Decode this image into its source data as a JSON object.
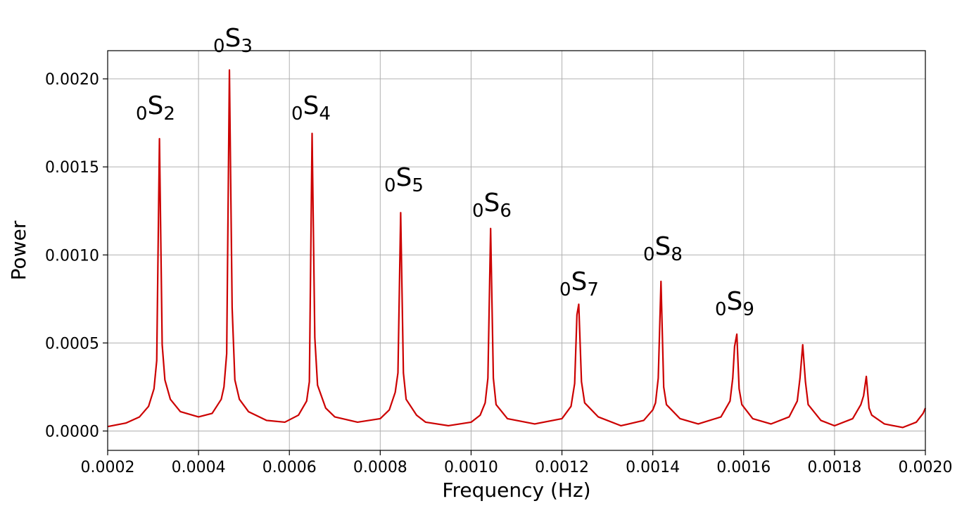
{
  "chart_data": {
    "type": "line",
    "x_label": "Frequency (Hz)",
    "y_label": "Power",
    "color": "#cc0000",
    "grid": true,
    "x": [
      0.0002,
      0.00024,
      0.00027,
      0.00029,
      0.000302,
      0.000308,
      0.000314,
      0.00032,
      0.000326,
      0.000338,
      0.00036,
      0.0004,
      0.00043,
      0.00045,
      0.000456,
      0.000462,
      0.000468,
      0.000474,
      0.00048,
      0.00049,
      0.00051,
      0.00055,
      0.00059,
      0.00062,
      0.000638,
      0.000644,
      0.00065,
      0.000656,
      0.000662,
      0.00068,
      0.0007,
      0.00075,
      0.0008,
      0.00082,
      0.000833,
      0.000839,
      0.000845,
      0.000851,
      0.000857,
      0.00088,
      0.0009,
      0.00095,
      0.001,
      0.00102,
      0.001031,
      0.001037,
      0.001043,
      0.001049,
      0.001055,
      0.00108,
      0.00114,
      0.0012,
      0.00122,
      0.001228,
      0.001233,
      0.001237,
      0.001243,
      0.00125,
      0.00128,
      0.00133,
      0.00138,
      0.0014,
      0.001406,
      0.001412,
      0.001418,
      0.001424,
      0.00143,
      0.00146,
      0.0015,
      0.00155,
      0.00157,
      0.001576,
      0.00158,
      0.001585,
      0.00159,
      0.001596,
      0.00162,
      0.00166,
      0.0017,
      0.001718,
      0.001724,
      0.00173,
      0.001736,
      0.001742,
      0.00177,
      0.0018,
      0.00184,
      0.001858,
      0.001864,
      0.00187,
      0.001876,
      0.001882,
      0.00191,
      0.00195,
      0.00198,
      0.001995,
      0.002
    ],
    "values": [
      2.5e-05,
      4.5e-05,
      8e-05,
      0.00014,
      0.00024,
      0.0004,
      0.00166,
      0.00049,
      0.00029,
      0.00018,
      0.00011,
      8e-05,
      0.0001,
      0.00018,
      0.00025,
      0.00044,
      0.00205,
      0.0007,
      0.00029,
      0.00018,
      0.00011,
      6e-05,
      5e-05,
      9e-05,
      0.00017,
      0.00028,
      0.00169,
      0.00053,
      0.00026,
      0.00013,
      8e-05,
      5e-05,
      7e-05,
      0.00012,
      0.00022,
      0.00033,
      0.00124,
      0.00033,
      0.00018,
      9e-05,
      5e-05,
      3e-05,
      5e-05,
      9e-05,
      0.00016,
      0.0003,
      0.00115,
      0.0003,
      0.00015,
      7e-05,
      4e-05,
      7e-05,
      0.00014,
      0.00027,
      0.00066,
      0.00072,
      0.00028,
      0.00016,
      8e-05,
      3e-05,
      6e-05,
      0.00012,
      0.00016,
      0.0003,
      0.00085,
      0.00025,
      0.00015,
      7e-05,
      4e-05,
      8e-05,
      0.00017,
      0.0003,
      0.00048,
      0.00055,
      0.00024,
      0.00015,
      7e-05,
      4e-05,
      8e-05,
      0.00017,
      0.0003,
      0.00049,
      0.00028,
      0.00015,
      6e-05,
      3e-05,
      7e-05,
      0.00015,
      0.0002,
      0.00031,
      0.00013,
      9e-05,
      4e-05,
      2e-05,
      5e-05,
      0.0001,
      0.00013
    ],
    "xlim": [
      0.0002,
      0.002
    ],
    "xticks": [
      0.0002,
      0.0004,
      0.0006,
      0.0008,
      {
        "value": 0.001,
        "label": "0.0010"
      },
      0.0012,
      0.0014,
      0.0016,
      0.0018,
      {
        "value": 0.002,
        "label": "0.0020"
      }
    ],
    "ylim": [
      -0.00011,
      0.00216
    ],
    "yticks": [
      {
        "value": 0,
        "label": "0.0000"
      },
      0.0005,
      {
        "value": 0.001,
        "label": "0.0010"
      },
      0.0015,
      {
        "value": 0.002,
        "label": "0.0020"
      }
    ],
    "annotations": [
      {
        "pre": "0",
        "text": "S",
        "sub": "2"
      },
      {
        "pre": "0",
        "text": "S",
        "sub": "3"
      },
      {
        "pre": "0",
        "text": "S",
        "sub": "4"
      },
      {
        "pre": "0",
        "text": "S",
        "sub": "5"
      },
      {
        "pre": "0",
        "text": "S",
        "sub": "6"
      },
      {
        "pre": "0",
        "text": "S",
        "sub": "7"
      },
      {
        "pre": "0",
        "text": "S",
        "sub": "8"
      },
      {
        "pre": "0",
        "text": "S",
        "sub": "9"
      }
    ]
  }
}
